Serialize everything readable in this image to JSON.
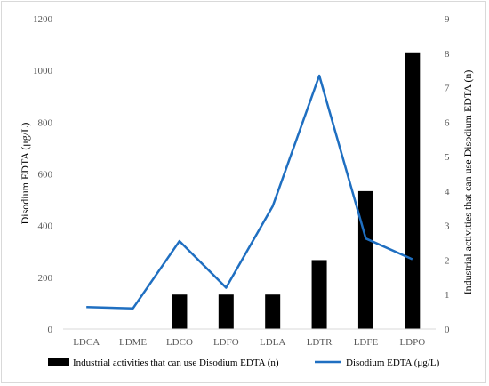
{
  "chart_data": {
    "type": "bar",
    "categories": [
      "LDCA",
      "LDME",
      "LDCO",
      "LDFO",
      "LDLA",
      "LDTR",
      "LDFE",
      "LDPO"
    ],
    "series": [
      {
        "name": "Industrial activities that can use Disodium EDTA (n)",
        "type": "bar",
        "axis": "right",
        "color": "#000000",
        "values": [
          0,
          0,
          1,
          1,
          1,
          2,
          4,
          8
        ]
      },
      {
        "name": "Disodium EDTA (μg/L)",
        "type": "line",
        "axis": "left",
        "color": "#1f6fc1",
        "values": [
          85,
          80,
          340,
          160,
          475,
          980,
          350,
          270
        ]
      }
    ],
    "ylabel": "Disodium EDTA (μg/L)",
    "ylabel_right": "Industrial activities that can use Disodium EDTA (n)",
    "ylim": [
      0,
      1200
    ],
    "ylim_right": [
      0,
      9
    ],
    "yticks": [
      "0",
      "200",
      "400",
      "600",
      "800",
      "1000",
      "1200"
    ],
    "yticks_right": [
      "0",
      "1",
      "2",
      "3",
      "4",
      "5",
      "6",
      "7",
      "8",
      "9"
    ],
    "grid": false,
    "legend": "bottom"
  }
}
